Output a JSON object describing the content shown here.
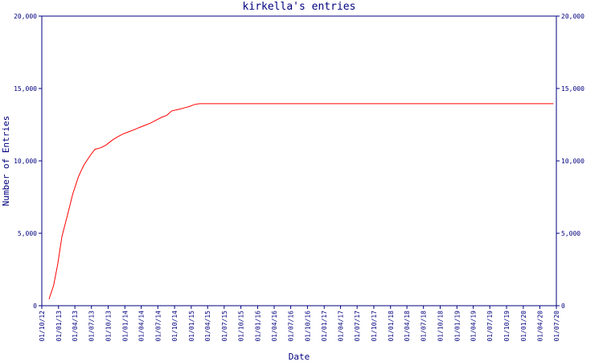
{
  "chart_data": {
    "type": "line",
    "title": "kirkella's entries",
    "xlabel": "Date",
    "ylabel": "Number of Entries",
    "ylim": [
      0,
      20000
    ],
    "xlim": [
      "2012-10-01",
      "2020-07-01"
    ],
    "grid": false,
    "y_ticks": [
      {
        "value": 0,
        "label": "0"
      },
      {
        "value": 5000,
        "label": "5,000"
      },
      {
        "value": 10000,
        "label": "10,000"
      },
      {
        "value": 15000,
        "label": "15,000"
      },
      {
        "value": 20000,
        "label": "20,000"
      }
    ],
    "x_ticks": [
      {
        "date": "2012-10-01",
        "label": "01/10/12"
      },
      {
        "date": "2013-01-01",
        "label": "01/01/13"
      },
      {
        "date": "2013-04-01",
        "label": "01/04/13"
      },
      {
        "date": "2013-07-01",
        "label": "01/07/13"
      },
      {
        "date": "2013-10-01",
        "label": "01/10/13"
      },
      {
        "date": "2014-01-01",
        "label": "01/01/14"
      },
      {
        "date": "2014-04-01",
        "label": "01/04/14"
      },
      {
        "date": "2014-07-01",
        "label": "01/07/14"
      },
      {
        "date": "2014-10-01",
        "label": "01/10/14"
      },
      {
        "date": "2015-01-01",
        "label": "01/01/15"
      },
      {
        "date": "2015-04-01",
        "label": "01/04/15"
      },
      {
        "date": "2015-07-01",
        "label": "01/07/15"
      },
      {
        "date": "2015-10-01",
        "label": "01/10/15"
      },
      {
        "date": "2016-01-01",
        "label": "01/01/16"
      },
      {
        "date": "2016-04-01",
        "label": "01/04/16"
      },
      {
        "date": "2016-07-01",
        "label": "01/07/16"
      },
      {
        "date": "2016-10-01",
        "label": "01/10/16"
      },
      {
        "date": "2017-01-01",
        "label": "01/01/17"
      },
      {
        "date": "2017-04-01",
        "label": "01/04/17"
      },
      {
        "date": "2017-07-01",
        "label": "01/07/17"
      },
      {
        "date": "2017-10-01",
        "label": "01/10/17"
      },
      {
        "date": "2018-01-01",
        "label": "01/01/18"
      },
      {
        "date": "2018-04-01",
        "label": "01/04/18"
      },
      {
        "date": "2018-07-01",
        "label": "01/07/18"
      },
      {
        "date": "2018-10-01",
        "label": "01/10/18"
      },
      {
        "date": "2019-01-01",
        "label": "01/01/19"
      },
      {
        "date": "2019-04-01",
        "label": "01/04/19"
      },
      {
        "date": "2019-07-01",
        "label": "01/07/19"
      },
      {
        "date": "2019-10-01",
        "label": "01/10/19"
      },
      {
        "date": "2020-01-01",
        "label": "01/01/20"
      },
      {
        "date": "2020-04-01",
        "label": "01/04/20"
      },
      {
        "date": "2020-07-01",
        "label": "01/07/20"
      }
    ],
    "series": [
      {
        "color": "#ff0000",
        "points": [
          {
            "x": "2012-11-10",
            "y": 450
          },
          {
            "x": "2012-12-05",
            "y": 1400
          },
          {
            "x": "2012-12-28",
            "y": 2900
          },
          {
            "x": "2013-01-20",
            "y": 4800
          },
          {
            "x": "2013-02-18",
            "y": 6200
          },
          {
            "x": "2013-03-20",
            "y": 7700
          },
          {
            "x": "2013-04-20",
            "y": 8900
          },
          {
            "x": "2013-05-20",
            "y": 9700
          },
          {
            "x": "2013-06-20",
            "y": 10300
          },
          {
            "x": "2013-07-20",
            "y": 10800
          },
          {
            "x": "2013-08-20",
            "y": 10900
          },
          {
            "x": "2013-09-20",
            "y": 11100
          },
          {
            "x": "2013-10-20",
            "y": 11400
          },
          {
            "x": "2013-11-20",
            "y": 11650
          },
          {
            "x": "2013-12-20",
            "y": 11850
          },
          {
            "x": "2014-01-20",
            "y": 12000
          },
          {
            "x": "2014-02-20",
            "y": 12150
          },
          {
            "x": "2014-03-20",
            "y": 12300
          },
          {
            "x": "2014-04-20",
            "y": 12450
          },
          {
            "x": "2014-05-20",
            "y": 12600
          },
          {
            "x": "2014-06-20",
            "y": 12800
          },
          {
            "x": "2014-07-20",
            "y": 13000
          },
          {
            "x": "2014-08-20",
            "y": 13150
          },
          {
            "x": "2014-09-15",
            "y": 13450
          },
          {
            "x": "2014-10-20",
            "y": 13550
          },
          {
            "x": "2014-11-20",
            "y": 13650
          },
          {
            "x": "2014-12-20",
            "y": 13750
          },
          {
            "x": "2015-01-20",
            "y": 13900
          },
          {
            "x": "2015-02-15",
            "y": 13950
          },
          {
            "x": "2020-06-15",
            "y": 13950
          }
        ]
      }
    ]
  }
}
